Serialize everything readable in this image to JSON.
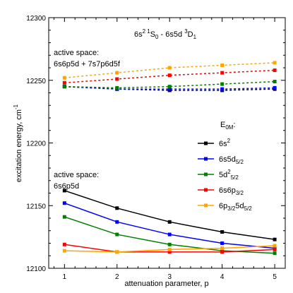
{
  "chart_data": {
    "type": "line",
    "title": "6s² ¹S₀ - 6s5d ³D₁",
    "xlabel": "attenuation parameter, p",
    "ylabel": "excitation energy, cm⁻¹",
    "xlim": [
      0.7,
      5.2
    ],
    "ylim": [
      12100,
      12300
    ],
    "x": [
      1,
      2,
      3,
      4,
      5
    ],
    "xticks": [
      "1",
      "2",
      "3",
      "4",
      "5"
    ],
    "yticks": [
      "12100",
      "12150",
      "12200",
      "12250",
      "12300"
    ],
    "legend_title": "E0M:",
    "legend_position": "right",
    "annotations": [
      {
        "id": "active-space-large",
        "line1": "active space:",
        "line2": "6s6p5d + 7s7p6d5f"
      },
      {
        "id": "active-space-small",
        "line1": "active space:",
        "line2": "6s6p5d"
      }
    ],
    "series": [
      {
        "name": "6s²",
        "color": "#000000",
        "groups": [
          {
            "active_space": "6s6p5d",
            "values": [
              12162,
              12148,
              12137,
              12129,
              12123
            ]
          },
          {
            "active_space": "6s6p5d + 7s7p6d5f",
            "values": [
              12245,
              12243,
              12242,
              12242,
              12243
            ]
          }
        ]
      },
      {
        "name": "6s5d5/2",
        "color": "#0000ff",
        "groups": [
          {
            "active_space": "6s6p5d",
            "values": [
              12152,
              12137,
              12127,
              12120,
              12116
            ]
          },
          {
            "active_space": "6s6p5d + 7s7p6d5f",
            "values": [
              12245,
              12243,
              12243,
              12243,
              12244
            ]
          }
        ]
      },
      {
        "name": "5d²5/2",
        "color": "#008000",
        "groups": [
          {
            "active_space": "6s6p5d",
            "values": [
              12141,
              12127,
              12119,
              12114,
              12112
            ]
          },
          {
            "active_space": "6s6p5d + 7s7p6d5f",
            "values": [
              12245,
              12244,
              12245,
              12247,
              12249
            ]
          }
        ]
      },
      {
        "name": "6s6p3/2",
        "color": "#ff0000",
        "groups": [
          {
            "active_space": "6s6p5d",
            "values": [
              12119,
              12113,
              12113,
              12113,
              12115
            ]
          },
          {
            "active_space": "6s6p5d + 7s7p6d5f",
            "values": [
              12248,
              12251,
              12254,
              12256,
              12258
            ]
          }
        ]
      },
      {
        "name": "6p3/25d5/2",
        "color": "#ffa500",
        "groups": [
          {
            "active_space": "6s6p5d",
            "values": [
              12114,
              12113,
              12115,
              12116,
              12118
            ]
          },
          {
            "active_space": "6s6p5d + 7s7p6d5f",
            "values": [
              12252,
              12256,
              12260,
              12262,
              12264
            ]
          }
        ]
      }
    ]
  }
}
